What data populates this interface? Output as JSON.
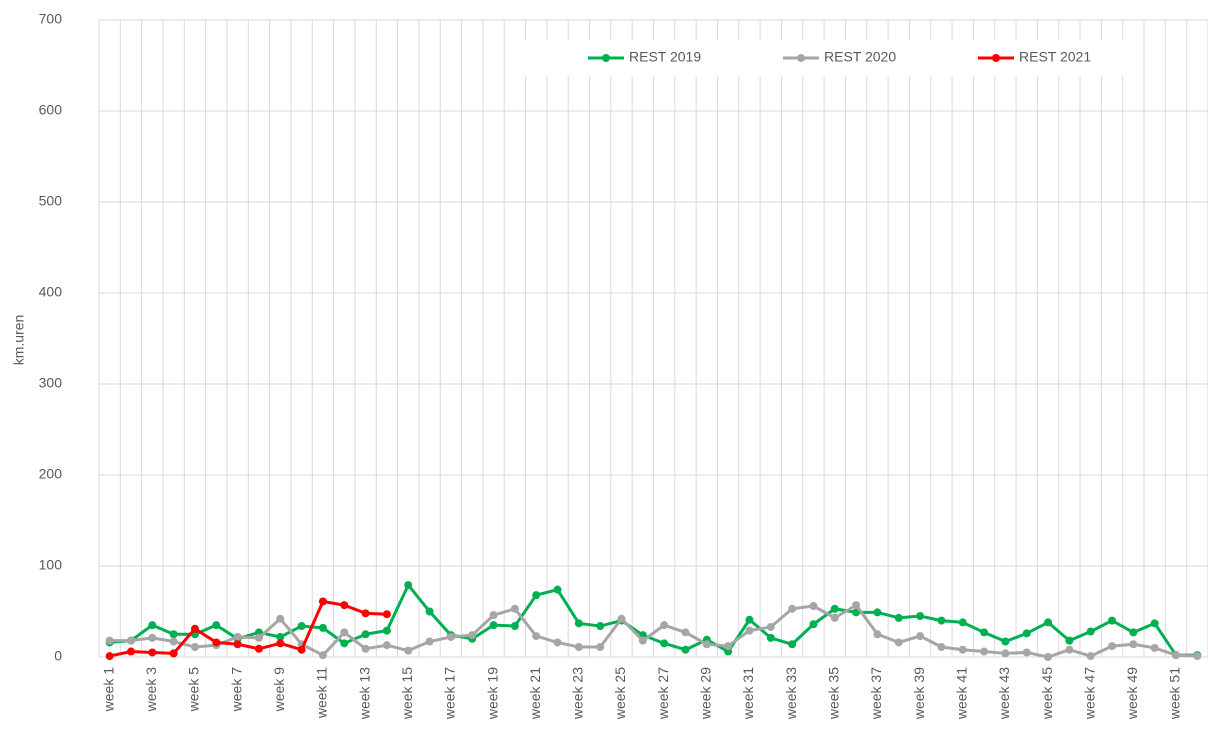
{
  "chart_data": {
    "type": "line",
    "y_label": "km.uren",
    "categories": [
      "week 1",
      null,
      "week 3",
      null,
      "week 5",
      null,
      "week 7",
      null,
      "week 9",
      null,
      "week 11",
      null,
      "week 13",
      null,
      "week 15",
      null,
      "week 17",
      null,
      "week 19",
      null,
      "week 21",
      null,
      "week 23",
      null,
      "week 25",
      null,
      "week 27",
      null,
      "week 29",
      null,
      "week 31",
      null,
      "week 33",
      null,
      "week 35",
      null,
      "week 37",
      null,
      "week 39",
      null,
      "week 41",
      null,
      "week 43",
      null,
      "week 45",
      null,
      "week 47",
      null,
      "week 49",
      null,
      "week 51",
      null
    ],
    "series": [
      {
        "name": "REST 2019",
        "color": "#00b050",
        "values": [
          16,
          18,
          35,
          25,
          25,
          35,
          20,
          27,
          22,
          34,
          32,
          15,
          25,
          29,
          79,
          50,
          24,
          20,
          35,
          34,
          68,
          74,
          37,
          34,
          40,
          24,
          15,
          8,
          19,
          6,
          41,
          21,
          14,
          36,
          53,
          49,
          49,
          43,
          45,
          40,
          38,
          27,
          17,
          26,
          38,
          18,
          28,
          40,
          27,
          37,
          2,
          2
        ]
      },
      {
        "name": "REST 2020",
        "color": "#a6a6a6",
        "values": [
          18,
          18,
          21,
          17,
          11,
          13,
          22,
          21,
          42,
          14,
          2,
          27,
          9,
          13,
          7,
          17,
          22,
          24,
          46,
          53,
          23,
          16,
          11,
          11,
          42,
          18,
          35,
          27,
          14,
          12,
          29,
          33,
          53,
          56,
          43,
          57,
          25,
          16,
          23,
          11,
          8,
          6,
          4,
          5,
          0,
          8,
          1,
          12,
          14,
          10,
          2,
          1
        ]
      },
      {
        "name": "REST 2021",
        "color": "#ff0000",
        "values": [
          1,
          6,
          5,
          4,
          31,
          16,
          14,
          9,
          15,
          8,
          61,
          57,
          48,
          47,
          null,
          null,
          null,
          null,
          null,
          null,
          null,
          null,
          null,
          null,
          null,
          null,
          null,
          null,
          null,
          null,
          null,
          null,
          null,
          null,
          null,
          null,
          null,
          null,
          null,
          null,
          null,
          null,
          null,
          null,
          null,
          null,
          null,
          null,
          null,
          null,
          null,
          null
        ]
      }
    ],
    "ylim": [
      0,
      700
    ],
    "yticks": [
      0,
      100,
      200,
      300,
      400,
      500,
      600,
      700
    ],
    "grid": true,
    "legend": "top"
  }
}
